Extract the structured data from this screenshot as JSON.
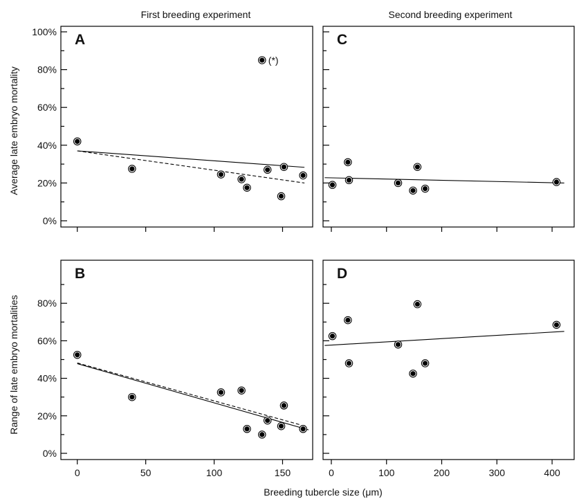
{
  "column_titles": [
    "First breeding experiment",
    "Second breeding experiment"
  ],
  "x_axis_label": "Breeding tubercle size (μm)",
  "y_axis_labels": {
    "top": "Average late embryo mortality",
    "bottom": "Range of late embryo mortalities"
  },
  "chart_data": [
    {
      "panel": "A",
      "type": "scatter",
      "title": "",
      "xlabel": "",
      "ylabel": "Average late embryo mortality",
      "xlim": [
        -12,
        172
      ],
      "ylim": [
        0,
        100
      ],
      "x_ticks": [
        0,
        50,
        100,
        150
      ],
      "x_tick_labels": [
        "",
        "",
        "",
        ""
      ],
      "y_ticks": [
        0,
        20,
        40,
        60,
        80,
        100
      ],
      "y_tick_labels": [
        "0%",
        "20%",
        "40%",
        "60%",
        "80%",
        "100%"
      ],
      "points": [
        {
          "x": 0,
          "y": 42
        },
        {
          "x": 40,
          "y": 27.5
        },
        {
          "x": 105,
          "y": 24.5
        },
        {
          "x": 120,
          "y": 22
        },
        {
          "x": 124,
          "y": 17.5
        },
        {
          "x": 135,
          "y": 85
        },
        {
          "x": 139,
          "y": 27
        },
        {
          "x": 149,
          "y": 13
        },
        {
          "x": 151,
          "y": 28.5
        },
        {
          "x": 165,
          "y": 24
        }
      ],
      "point_annotations": [
        {
          "point_index": 5,
          "text": "(*)"
        }
      ],
      "fit_lines": [
        {
          "style": "solid",
          "x": [
            0,
            166
          ],
          "y": [
            37,
            28.3
          ]
        },
        {
          "style": "dashed",
          "x": [
            0,
            166
          ],
          "y": [
            37,
            20
          ]
        }
      ]
    },
    {
      "panel": "B",
      "type": "scatter",
      "title": "",
      "xlabel": "",
      "ylabel": "Range of late embryo mortalities",
      "xlim": [
        -12,
        172
      ],
      "ylim": [
        0,
        100
      ],
      "x_ticks": [
        0,
        50,
        100,
        150
      ],
      "x_tick_labels": [
        "0",
        "50",
        "100",
        "150"
      ],
      "y_ticks": [
        0,
        20,
        40,
        60,
        80
      ],
      "y_tick_labels": [
        "0%",
        "20%",
        "40%",
        "60%",
        "80%"
      ],
      "points": [
        {
          "x": 0,
          "y": 52.5
        },
        {
          "x": 40,
          "y": 30
        },
        {
          "x": 105,
          "y": 32.5
        },
        {
          "x": 120,
          "y": 33.5
        },
        {
          "x": 124,
          "y": 13
        },
        {
          "x": 135,
          "y": 10
        },
        {
          "x": 139,
          "y": 17.5
        },
        {
          "x": 149,
          "y": 14.5
        },
        {
          "x": 151,
          "y": 25.5
        },
        {
          "x": 165,
          "y": 13
        }
      ],
      "point_annotations": [],
      "fit_lines": [
        {
          "style": "solid",
          "x": [
            0,
            169
          ],
          "y": [
            47.8,
            12.5
          ]
        },
        {
          "style": "dashed",
          "x": [
            0,
            163
          ],
          "y": [
            48.2,
            15.2
          ]
        }
      ]
    },
    {
      "panel": "C",
      "type": "scatter",
      "title": "",
      "xlabel": "",
      "ylabel": "",
      "xlim": [
        -15,
        440
      ],
      "ylim": [
        0,
        100
      ],
      "x_ticks": [
        0,
        100,
        200,
        300,
        400
      ],
      "x_tick_labels": [
        "",
        "",
        "",
        "",
        ""
      ],
      "y_ticks": [
        0,
        20,
        40,
        60,
        80,
        100
      ],
      "y_tick_labels": [
        "",
        "",
        "",
        "",
        "",
        ""
      ],
      "points": [
        {
          "x": 2,
          "y": 19
        },
        {
          "x": 30,
          "y": 31
        },
        {
          "x": 32,
          "y": 21.5
        },
        {
          "x": 121,
          "y": 20
        },
        {
          "x": 148,
          "y": 16
        },
        {
          "x": 156,
          "y": 28.5
        },
        {
          "x": 170,
          "y": 17
        },
        {
          "x": 408,
          "y": 20.5
        }
      ],
      "point_annotations": [],
      "fit_lines": [
        {
          "style": "solid",
          "x": [
            -12,
            422
          ],
          "y": [
            22.8,
            20
          ]
        }
      ]
    },
    {
      "panel": "D",
      "type": "scatter",
      "title": "",
      "xlabel": "",
      "ylabel": "",
      "xlim": [
        -15,
        440
      ],
      "ylim": [
        0,
        100
      ],
      "x_ticks": [
        0,
        100,
        200,
        300,
        400
      ],
      "x_tick_labels": [
        "0",
        "100",
        "200",
        "300",
        "400"
      ],
      "y_ticks": [
        0,
        20,
        40,
        60,
        80
      ],
      "y_tick_labels": [
        "",
        "",
        "",
        "",
        ""
      ],
      "points": [
        {
          "x": 2,
          "y": 62.5
        },
        {
          "x": 30,
          "y": 71
        },
        {
          "x": 32,
          "y": 48
        },
        {
          "x": 121,
          "y": 58
        },
        {
          "x": 148,
          "y": 42.5
        },
        {
          "x": 156,
          "y": 79.5
        },
        {
          "x": 170,
          "y": 48
        },
        {
          "x": 408,
          "y": 68.5
        }
      ],
      "point_annotations": [],
      "fit_lines": [
        {
          "style": "solid",
          "x": [
            -12,
            422
          ],
          "y": [
            57.5,
            65
          ]
        }
      ]
    }
  ]
}
